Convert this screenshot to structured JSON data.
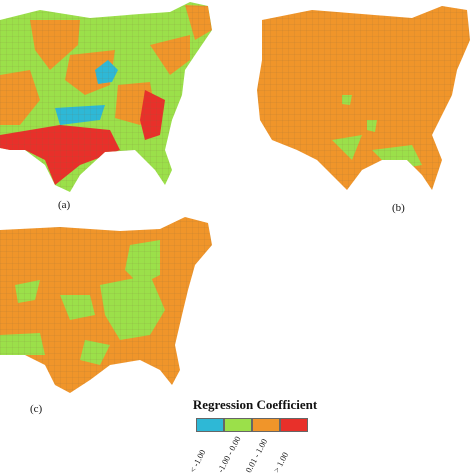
{
  "panels": [
    {
      "label": "(a)"
    },
    {
      "label": "(b)"
    },
    {
      "label": "(c)"
    }
  ],
  "legend": {
    "title": "Regression Coefficient",
    "classes": [
      {
        "label": "< -1.00",
        "color": "#2eb8d6"
      },
      {
        "label": "-1.00 - 0.00",
        "color": "#9be04a"
      },
      {
        "label": "0.01 - 1.00",
        "color": "#f0952a"
      },
      {
        "label": "> 1.00",
        "color": "#e8302a"
      }
    ]
  },
  "colors": {
    "negative_strong": "#2eb8d6",
    "negative": "#9be04a",
    "positive": "#f0952a",
    "positive_strong": "#e8302a",
    "county_border": "#7a6a40"
  }
}
